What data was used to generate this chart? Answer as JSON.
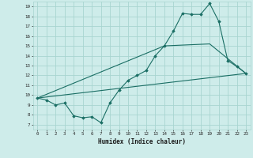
{
  "title": "",
  "xlabel": "Humidex (Indice chaleur)",
  "ylabel": "",
  "bg_color": "#ceecea",
  "grid_color": "#a8d5d0",
  "line_color": "#1a6e64",
  "xlim": [
    -0.5,
    23.5
  ],
  "ylim": [
    6.5,
    19.5
  ],
  "xticks": [
    0,
    1,
    2,
    3,
    4,
    5,
    6,
    7,
    8,
    9,
    10,
    11,
    12,
    13,
    14,
    15,
    16,
    17,
    18,
    19,
    20,
    21,
    22,
    23
  ],
  "yticks": [
    7,
    8,
    9,
    10,
    11,
    12,
    13,
    14,
    15,
    16,
    17,
    18,
    19
  ],
  "series1_x": [
    0,
    1,
    2,
    3,
    4,
    5,
    6,
    7,
    8,
    9,
    10,
    11,
    12,
    13,
    14,
    15,
    16,
    17,
    18,
    19,
    20,
    21,
    22,
    23
  ],
  "series1_y": [
    9.7,
    9.5,
    9.0,
    9.2,
    7.9,
    7.7,
    7.8,
    7.2,
    9.2,
    10.5,
    11.5,
    12.0,
    12.5,
    14.0,
    15.0,
    16.5,
    18.3,
    18.2,
    18.2,
    19.3,
    17.5,
    13.5,
    12.9,
    12.2
  ],
  "series2_x": [
    0,
    23
  ],
  "series2_y": [
    9.7,
    12.2
  ],
  "series3_x": [
    0,
    14,
    19,
    23
  ],
  "series3_y": [
    9.7,
    15.0,
    15.2,
    12.2
  ]
}
